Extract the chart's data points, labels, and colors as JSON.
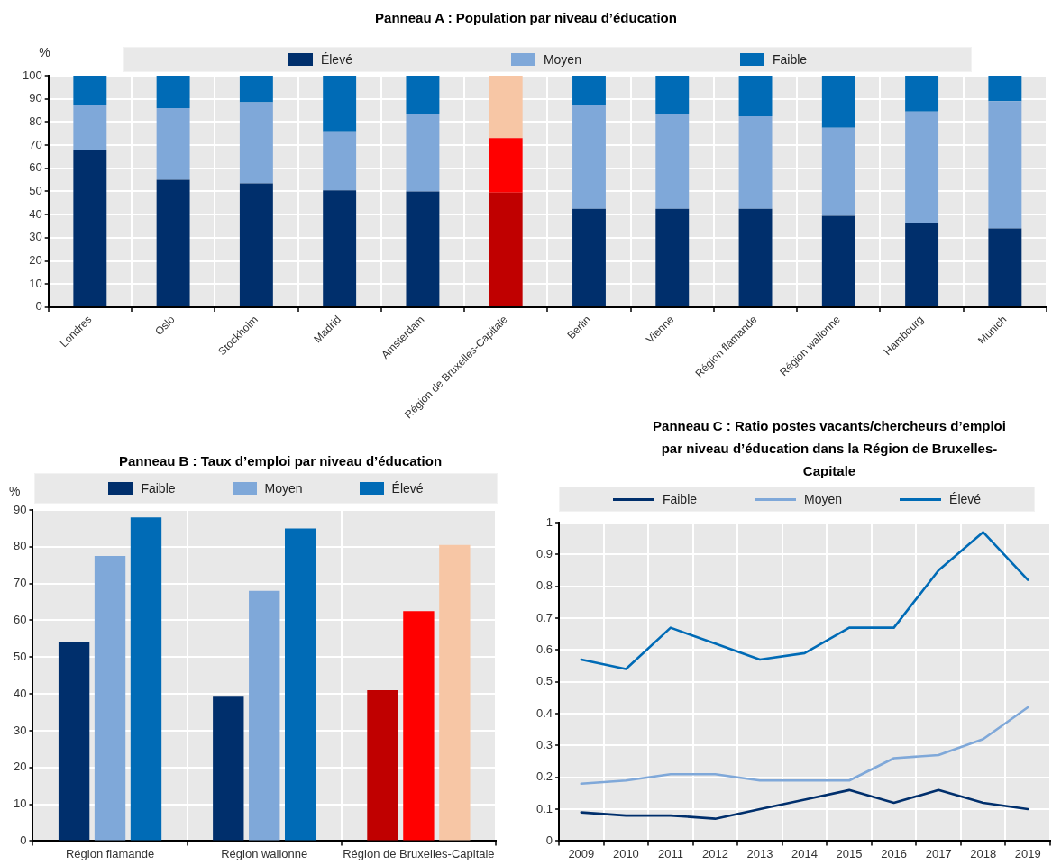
{
  "chart_data": [
    {
      "type": "bar",
      "title": "Panneau A : Population par niveau d’éducation",
      "ylabel": "%",
      "categories": [
        "Londres",
        "Oslo",
        "Stockholm",
        "Madrid",
        "Amsterdam",
        "Région de Bruxelles-Capitale",
        "Berlin",
        "Vienne",
        "Région flamande",
        "Région wallonne",
        "Hambourg",
        "Munich"
      ],
      "stacked": true,
      "series": [
        {
          "name": "Élevé",
          "color": "#002f6c",
          "colors": [
            "#002f6c",
            "#002f6c",
            "#002f6c",
            "#002f6c",
            "#002f6c",
            "#c00000",
            "#002f6c",
            "#002f6c",
            "#002f6c",
            "#002f6c",
            "#002f6c",
            "#002f6c"
          ],
          "values": [
            68,
            55,
            53.5,
            50.5,
            50,
            49.5,
            42.5,
            42.5,
            42.5,
            39.5,
            36.5,
            34
          ]
        },
        {
          "name": "Moyen",
          "color": "#7fa8d9",
          "colors": [
            "#7fa8d9",
            "#7fa8d9",
            "#7fa8d9",
            "#7fa8d9",
            "#7fa8d9",
            "#ff0000",
            "#7fa8d9",
            "#7fa8d9",
            "#7fa8d9",
            "#7fa8d9",
            "#7fa8d9",
            "#7fa8d9"
          ],
          "values": [
            19.5,
            31,
            35,
            25.5,
            33.5,
            23.5,
            45,
            41,
            40,
            38,
            48,
            55
          ]
        },
        {
          "name": "Faible",
          "color": "#006bb6",
          "colors": [
            "#006bb6",
            "#006bb6",
            "#006bb6",
            "#006bb6",
            "#006bb6",
            "#f7c6a5",
            "#006bb6",
            "#006bb6",
            "#006bb6",
            "#006bb6",
            "#006bb6",
            "#006bb6"
          ],
          "values": [
            12.5,
            14,
            11.5,
            24,
            16.5,
            27,
            12.5,
            16.5,
            17.5,
            22.5,
            15.5,
            11
          ]
        }
      ],
      "ylim": [
        0,
        100
      ],
      "yticks": [
        0,
        10,
        20,
        30,
        40,
        50,
        60,
        70,
        80,
        90,
        100
      ],
      "grid": true,
      "legend": "top"
    },
    {
      "type": "bar",
      "title": "Panneau B : Taux d’emploi par niveau d’éducation",
      "ylabel": "%",
      "categories": [
        "Région flamande",
        "Région wallonne",
        "Région de Bruxelles-Capitale"
      ],
      "series": [
        {
          "name": "Faible",
          "color": "#002f6c",
          "colors": [
            "#002f6c",
            "#002f6c",
            "#c00000"
          ],
          "values": [
            54,
            39.5,
            41
          ]
        },
        {
          "name": "Moyen",
          "color": "#7fa8d9",
          "colors": [
            "#7fa8d9",
            "#7fa8d9",
            "#ff0000"
          ],
          "values": [
            77.5,
            68,
            62.5
          ]
        },
        {
          "name": "Élevé",
          "color": "#006bb6",
          "colors": [
            "#006bb6",
            "#006bb6",
            "#f7c6a5"
          ],
          "values": [
            88,
            85,
            80.5
          ]
        }
      ],
      "ylim": [
        0,
        90
      ],
      "yticks": [
        0,
        10,
        20,
        30,
        40,
        50,
        60,
        70,
        80,
        90
      ],
      "grid": true,
      "legend": "top"
    },
    {
      "type": "line",
      "title": "Panneau C : Ratio postes vacants/chercheurs d’emploi par niveau d’éducation dans la Région de Bruxelles-Capitale",
      "categories": [
        "2009",
        "2010",
        "2011",
        "2012",
        "2013",
        "2014",
        "2015",
        "2016",
        "2017",
        "2018",
        "2019"
      ],
      "series": [
        {
          "name": "Faible",
          "color": "#002f6c",
          "values": [
            0.09,
            0.08,
            0.08,
            0.07,
            0.1,
            0.13,
            0.16,
            0.12,
            0.16,
            0.12,
            0.1
          ]
        },
        {
          "name": "Moyen",
          "color": "#7fa8d9",
          "values": [
            0.18,
            0.19,
            0.21,
            0.21,
            0.19,
            0.19,
            0.19,
            0.26,
            0.27,
            0.32,
            0.42
          ]
        },
        {
          "name": "Élevé",
          "color": "#006bb6",
          "values": [
            0.57,
            0.54,
            0.67,
            0.62,
            0.57,
            0.59,
            0.67,
            0.67,
            0.85,
            0.97,
            0.82
          ]
        }
      ],
      "ylim": [
        0,
        1
      ],
      "yticks": [
        0,
        0.1,
        0.2,
        0.3,
        0.4,
        0.5,
        0.6,
        0.7,
        0.8,
        0.9,
        1
      ],
      "grid": true,
      "legend": "top"
    }
  ]
}
